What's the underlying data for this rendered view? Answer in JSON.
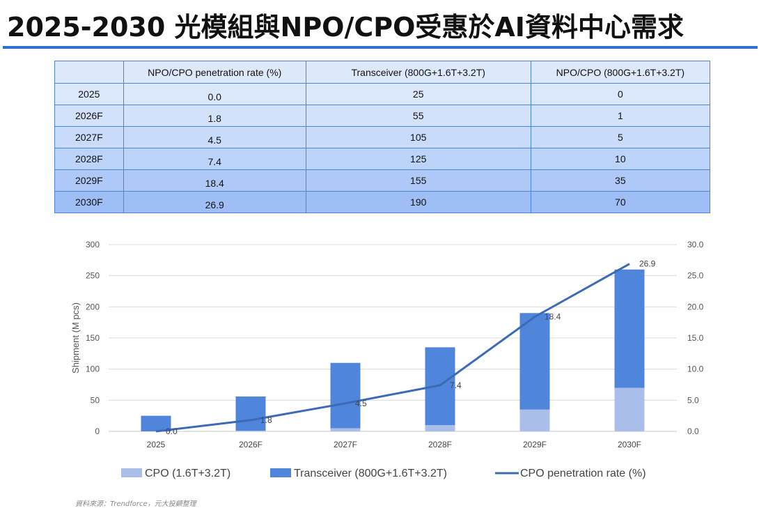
{
  "title": "2025-2030 光模組與NPO/CPO受惠於AI資料中心需求",
  "table": {
    "headers": [
      "",
      "NPO/CPO penetration rate (%)",
      "Transceiver (800G+1.6T+3.2T)",
      "NPO/CPO (800G+1.6T+3.2T)"
    ],
    "rows": [
      [
        "2025",
        "0.0",
        "25",
        "0"
      ],
      [
        "2026F",
        "1.8",
        "55",
        "1"
      ],
      [
        "2027F",
        "4.5",
        "105",
        "5"
      ],
      [
        "2028F",
        "7.4",
        "125",
        "10"
      ],
      [
        "2029F",
        "18.4",
        "155",
        "35"
      ],
      [
        "2030F",
        "26.9",
        "190",
        "70"
      ]
    ],
    "row_colors": [
      "#dbe7fa",
      "#d3e2fb",
      "#c9dbfb",
      "#bcd3fa",
      "#aec9f8",
      "#9fbef5"
    ],
    "header_color": "#dde8fb"
  },
  "chart_data": {
    "type": "bar",
    "stacked": true,
    "categories": [
      "2025",
      "2026F",
      "2027F",
      "2028F",
      "2029F",
      "2030F"
    ],
    "series": [
      {
        "name": "CPO (1.6T+3.2T)",
        "values": [
          0,
          1,
          5,
          10,
          35,
          70
        ],
        "color": "#a9bfea"
      },
      {
        "name": "Transceiver (800G+1.6T+3.2T)",
        "values": [
          25,
          55,
          105,
          125,
          155,
          190
        ],
        "color": "#4f86db"
      }
    ],
    "line_series": {
      "name": "CPO penetration rate (%)",
      "values": [
        0.0,
        1.8,
        4.5,
        7.4,
        18.4,
        26.9
      ],
      "labels": [
        "0.0",
        "1.8",
        "4.5",
        "7.4",
        "18.4",
        "26.9"
      ],
      "color": "#3c6ab7",
      "axis": "right"
    },
    "ylabel": "Shipment (M pcs)",
    "ylim": [
      0,
      300
    ],
    "yticks": [
      "0",
      "50",
      "100",
      "150",
      "200",
      "250",
      "300"
    ],
    "y2lim": [
      0,
      30
    ],
    "y2ticks": [
      "0.0",
      "5.0",
      "10.0",
      "15.0",
      "20.0",
      "25.0",
      "30.0"
    ],
    "grid": true,
    "legend_position": "bottom"
  },
  "source": "資料來源：Trendforce，元大投顧整理"
}
